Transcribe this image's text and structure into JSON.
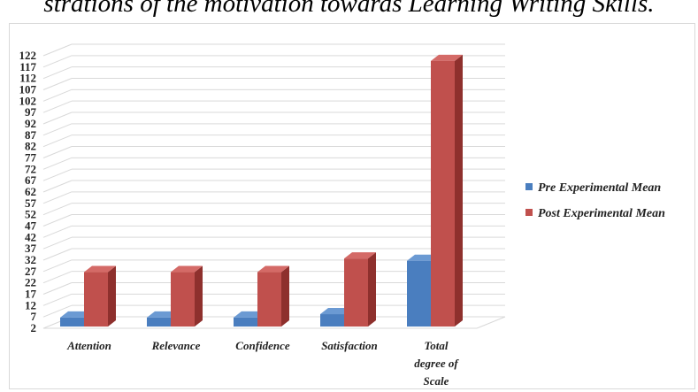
{
  "page": {
    "title_fragment": "strations of the motivation towards Learning Writing Skills."
  },
  "chart_data": {
    "type": "bar",
    "title": "",
    "xlabel": "",
    "ylabel": "",
    "ylim": [
      2,
      122
    ],
    "yticks": [
      2,
      7,
      12,
      17,
      22,
      27,
      32,
      37,
      42,
      47,
      52,
      57,
      62,
      67,
      72,
      77,
      82,
      87,
      92,
      97,
      102,
      107,
      112,
      117,
      122
    ],
    "grid": true,
    "legend_position": "right",
    "categories": [
      [
        "Attention"
      ],
      [
        "Relevance"
      ],
      [
        "Confidence"
      ],
      [
        "Satisfaction"
      ],
      [
        "Total",
        "degree of",
        "Scale"
      ]
    ],
    "series": [
      {
        "name": "Pre Experimental Mean",
        "color": "#4a7ebf",
        "values": [
          7.5,
          7.5,
          7.5,
          9,
          32.5
        ]
      },
      {
        "name": "Post Experimental Mean",
        "color": "#c0504d",
        "values": [
          27.5,
          27.5,
          27.5,
          33.5,
          120.5
        ]
      }
    ]
  }
}
